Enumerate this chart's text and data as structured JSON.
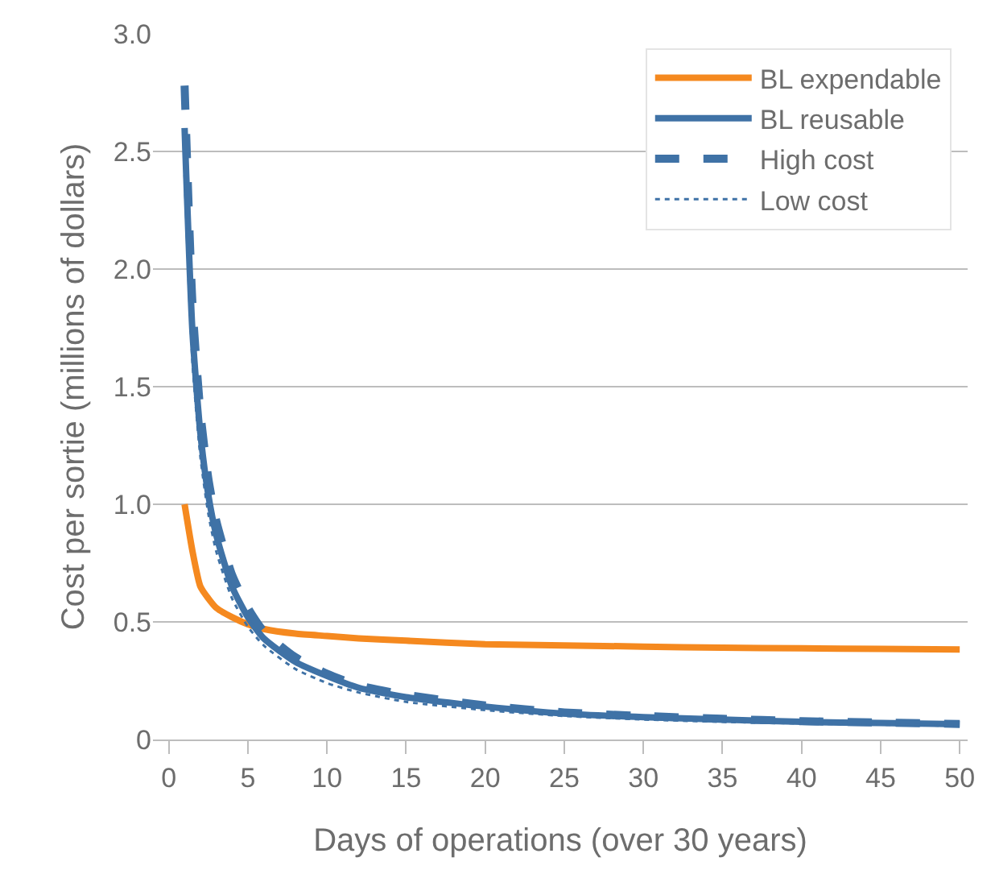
{
  "chart_data": {
    "type": "line",
    "xlabel": "Days of operations (over 30 years)",
    "ylabel": "Cost per sortie (millions of dollars)",
    "x": [
      1,
      1.5,
      2,
      2.5,
      3,
      4,
      5,
      6,
      8,
      10,
      12,
      15,
      20,
      25,
      30,
      35,
      40,
      45,
      50
    ],
    "series": [
      {
        "name": "BL expendable",
        "color": "#f5891f",
        "line_style": "solid",
        "values": [
          1.0,
          0.8,
          0.65,
          0.6,
          0.56,
          0.52,
          0.49,
          0.47,
          0.45,
          0.44,
          0.43,
          0.42,
          0.405,
          0.4,
          0.395,
          0.39,
          0.388,
          0.385,
          0.383
        ]
      },
      {
        "name": "BL reusable",
        "color": "#3f72a6",
        "line_style": "solid",
        "values": [
          2.6,
          1.73,
          1.3,
          1.04,
          0.87,
          0.65,
          0.52,
          0.43,
          0.33,
          0.27,
          0.22,
          0.18,
          0.14,
          0.11,
          0.095,
          0.085,
          0.075,
          0.07,
          0.065
        ]
      },
      {
        "name": "High cost",
        "color": "#3f72a6",
        "line_style": "dashed",
        "values": [
          2.78,
          1.85,
          1.39,
          1.11,
          0.93,
          0.7,
          0.56,
          0.46,
          0.35,
          0.28,
          0.23,
          0.19,
          0.145,
          0.115,
          0.1,
          0.088,
          0.078,
          0.072,
          0.066
        ]
      },
      {
        "name": "Low cost",
        "color": "#3f72a6",
        "line_style": "dotted",
        "values": [
          2.4,
          1.6,
          1.2,
          0.96,
          0.8,
          0.6,
          0.48,
          0.4,
          0.3,
          0.24,
          0.2,
          0.16,
          0.125,
          0.1,
          0.085,
          0.075,
          0.068,
          0.063,
          0.058
        ]
      }
    ],
    "xlim": [
      -1,
      50.5
    ],
    "xticks": [
      0,
      5,
      10,
      15,
      20,
      25,
      30,
      35,
      40,
      45,
      50
    ],
    "ylim": [
      0,
      3
    ],
    "yticks": [
      {
        "value": 0,
        "label": "0"
      },
      {
        "value": 0.5,
        "label": "0.5"
      },
      {
        "value": 1,
        "label": "1.0"
      },
      {
        "value": 1.5,
        "label": "1.5"
      },
      {
        "value": 2,
        "label": "2.0"
      },
      {
        "value": 2.5,
        "label": "2.5"
      },
      {
        "value": 3,
        "label": "3.0"
      }
    ],
    "grid": "y",
    "legend": "top right",
    "marker": "none"
  }
}
